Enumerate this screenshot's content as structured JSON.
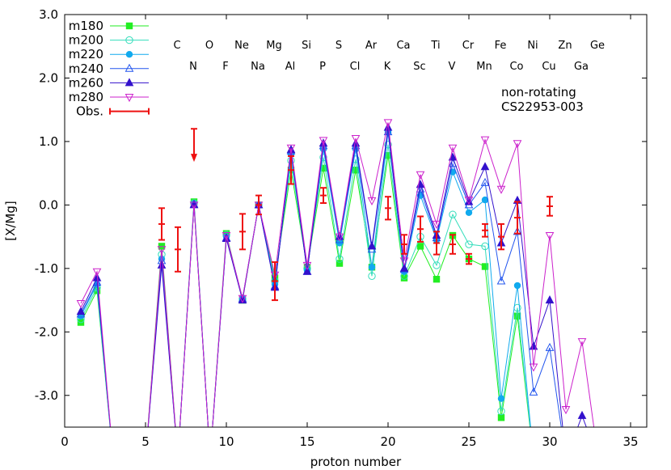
{
  "chart_data": {
    "type": "line",
    "title": "",
    "xlabel": "proton number",
    "ylabel": "[X/Mg]",
    "xlim": [
      0,
      36
    ],
    "ylim": [
      -3.5,
      3.0
    ],
    "xticks": [
      0,
      5,
      10,
      15,
      20,
      25,
      30,
      35
    ],
    "xtick_labels": [
      "0",
      "5",
      "10",
      "15",
      "20",
      "25",
      "30",
      "35"
    ],
    "yticks": [
      -3.0,
      -2.0,
      -1.0,
      0.0,
      1.0,
      2.0,
      3.0
    ],
    "ytick_labels": [
      "-3.0",
      "-2.0",
      "-1.0",
      "0.0",
      "1.0",
      "2.0",
      "3.0"
    ],
    "annotations": [
      "non-rotating",
      "CS22953-003"
    ],
    "elements_row1": [
      [
        "C",
        6
      ],
      [
        "O",
        8
      ],
      [
        "Ne",
        10
      ],
      [
        "Mg",
        12
      ],
      [
        "Si",
        14
      ],
      [
        "S",
        16
      ],
      [
        "Ar",
        18
      ],
      [
        "Ca",
        20
      ],
      [
        "Ti",
        22
      ],
      [
        "Cr",
        24
      ],
      [
        "Fe",
        26
      ],
      [
        "Ni",
        28
      ],
      [
        "Zn",
        30
      ],
      [
        "Ge",
        32
      ]
    ],
    "elements_row2": [
      [
        "N",
        7
      ],
      [
        "F",
        9
      ],
      [
        "Na",
        11
      ],
      [
        "Al",
        13
      ],
      [
        "P",
        15
      ],
      [
        "Cl",
        17
      ],
      [
        "K",
        19
      ],
      [
        "Sc",
        21
      ],
      [
        "V",
        23
      ],
      [
        "Mn",
        25
      ],
      [
        "Co",
        27
      ],
      [
        "Cu",
        29
      ],
      [
        "Ga",
        31
      ]
    ],
    "legend_position": "top-left",
    "series": [
      {
        "name": "m180",
        "color": "#22ee22",
        "marker": "square-filled",
        "x": [
          1,
          2,
          3,
          4,
          5,
          6,
          7,
          8,
          9,
          10,
          11,
          12,
          13,
          14,
          15,
          16,
          17,
          18,
          19,
          20,
          21,
          22,
          23,
          24,
          25,
          26,
          27,
          28,
          29
        ],
        "y": [
          -1.85,
          -1.35,
          -4.0,
          -4.0,
          -4.0,
          -0.65,
          -4.0,
          0.05,
          -4.0,
          -0.45,
          -1.5,
          0.0,
          -1.15,
          0.55,
          -0.98,
          0.58,
          -0.92,
          0.55,
          -0.98,
          0.78,
          -1.15,
          -0.65,
          -1.17,
          -0.48,
          -0.85,
          -0.97,
          -3.35,
          -1.75,
          -4.0
        ]
      },
      {
        "name": "m200",
        "color": "#33ddbb",
        "marker": "circle-open",
        "x": [
          1,
          2,
          3,
          4,
          5,
          6,
          7,
          8,
          9,
          10,
          11,
          12,
          13,
          14,
          15,
          16,
          17,
          18,
          19,
          20,
          21,
          22,
          23,
          24,
          25,
          26,
          27,
          28,
          29
        ],
        "y": [
          -1.8,
          -1.3,
          -4.0,
          -4.0,
          -4.0,
          -0.78,
          -4.0,
          0.03,
          -4.0,
          -0.47,
          -1.48,
          0.0,
          -1.2,
          0.7,
          -1.0,
          0.75,
          -0.85,
          0.72,
          -1.12,
          0.95,
          -1.12,
          -0.5,
          -0.95,
          -0.15,
          -0.62,
          -0.65,
          -3.25,
          -1.62,
          -4.0
        ]
      },
      {
        "name": "m220",
        "color": "#11aaee",
        "marker": "circle-filled",
        "x": [
          1,
          2,
          3,
          4,
          5,
          6,
          7,
          8,
          9,
          10,
          11,
          12,
          13,
          14,
          15,
          16,
          17,
          18,
          19,
          20,
          21,
          22,
          23,
          24,
          25,
          26,
          27,
          28,
          29
        ],
        "y": [
          -1.75,
          -1.25,
          -4.0,
          -4.0,
          -4.0,
          -0.85,
          -4.0,
          0.02,
          -4.0,
          -0.5,
          -1.47,
          0.0,
          -1.25,
          0.8,
          -1.03,
          0.88,
          -0.6,
          0.88,
          -0.98,
          1.15,
          -1.05,
          0.15,
          -0.55,
          0.52,
          -0.12,
          0.08,
          -3.05,
          -1.27,
          -4.0
        ]
      },
      {
        "name": "m240",
        "color": "#2255ee",
        "marker": "triangle-open",
        "x": [
          1,
          2,
          3,
          4,
          5,
          6,
          7,
          8,
          9,
          10,
          11,
          12,
          13,
          14,
          15,
          16,
          17,
          18,
          19,
          20,
          21,
          22,
          23,
          24,
          25,
          26,
          27,
          28,
          29,
          30,
          31
        ],
        "y": [
          -1.72,
          -1.22,
          -4.0,
          -4.0,
          -4.0,
          -0.88,
          -4.0,
          0.01,
          -4.0,
          -0.52,
          -1.48,
          0.0,
          -1.28,
          0.85,
          -1.05,
          0.93,
          -0.55,
          0.93,
          -0.7,
          1.15,
          -1.02,
          0.25,
          -0.52,
          0.65,
          0.0,
          0.35,
          -1.2,
          -0.42,
          -2.95,
          -2.25,
          -4.0
        ]
      },
      {
        "name": "m260",
        "color": "#3311cc",
        "marker": "triangle-filled",
        "x": [
          1,
          2,
          3,
          4,
          5,
          6,
          7,
          8,
          9,
          10,
          11,
          12,
          13,
          14,
          15,
          16,
          17,
          18,
          19,
          20,
          21,
          22,
          23,
          24,
          25,
          26,
          27,
          28,
          29,
          30,
          31,
          32,
          33
        ],
        "y": [
          -1.68,
          -1.15,
          -4.0,
          -4.0,
          -4.0,
          -0.95,
          -4.0,
          0.0,
          -4.0,
          -0.53,
          -1.5,
          0.0,
          -1.3,
          0.87,
          -1.05,
          0.97,
          -0.5,
          0.97,
          -0.65,
          1.22,
          -1.0,
          0.32,
          -0.48,
          0.75,
          0.05,
          0.6,
          -0.6,
          0.07,
          -2.23,
          -1.5,
          -4.0,
          -3.32,
          -4.0
        ]
      },
      {
        "name": "m280",
        "color": "#cc22cc",
        "marker": "triangle-down-open",
        "x": [
          1,
          2,
          3,
          4,
          5,
          6,
          7,
          8,
          9,
          10,
          11,
          12,
          13,
          14,
          15,
          16,
          17,
          18,
          19,
          20,
          21,
          22,
          23,
          24,
          25,
          26,
          27,
          28,
          29,
          30,
          31,
          32,
          33
        ],
        "y": [
          -1.55,
          -1.05,
          -4.0,
          -4.0,
          -4.0,
          -0.7,
          -4.0,
          0.0,
          -4.0,
          -0.48,
          -1.47,
          0.0,
          -1.1,
          0.9,
          -0.95,
          1.02,
          -0.5,
          1.05,
          0.07,
          1.3,
          -0.88,
          0.48,
          -0.3,
          0.9,
          0.08,
          1.03,
          0.25,
          0.97,
          -2.55,
          -0.48,
          -3.22,
          -2.15,
          -4.0
        ]
      },
      {
        "name": "Obs.",
        "color": "#ee1111",
        "marker": "errorbar",
        "points": [
          {
            "x": 6,
            "y": -0.3,
            "err": 0.25
          },
          {
            "x": 7,
            "y": -0.7,
            "err": 0.35
          },
          {
            "x": 8,
            "y": 1.2,
            "upper_limit": true
          },
          {
            "x": 11,
            "y": -0.42,
            "err": 0.28
          },
          {
            "x": 12,
            "y": 0.0,
            "err": 0.15
          },
          {
            "x": 13,
            "y": -1.2,
            "err": 0.3
          },
          {
            "x": 14,
            "y": 0.55,
            "err": 0.22
          },
          {
            "x": 16,
            "y": 0.15,
            "err": 0.12
          },
          {
            "x": 20,
            "y": -0.05,
            "err": 0.18
          },
          {
            "x": 21,
            "y": -0.62,
            "err": 0.15
          },
          {
            "x": 22,
            "y": -0.38,
            "err": 0.2
          },
          {
            "x": 23,
            "y": -0.6,
            "err": 0.18
          },
          {
            "x": 24,
            "y": -0.62,
            "err": 0.15
          },
          {
            "x": 25,
            "y": -0.85,
            "err": 0.08
          },
          {
            "x": 26,
            "y": -0.4,
            "err": 0.1
          },
          {
            "x": 27,
            "y": -0.5,
            "err": 0.2
          },
          {
            "x": 28,
            "y": -0.2,
            "err": 0.25
          },
          {
            "x": 30,
            "y": -0.02,
            "err": 0.15
          }
        ]
      }
    ]
  }
}
